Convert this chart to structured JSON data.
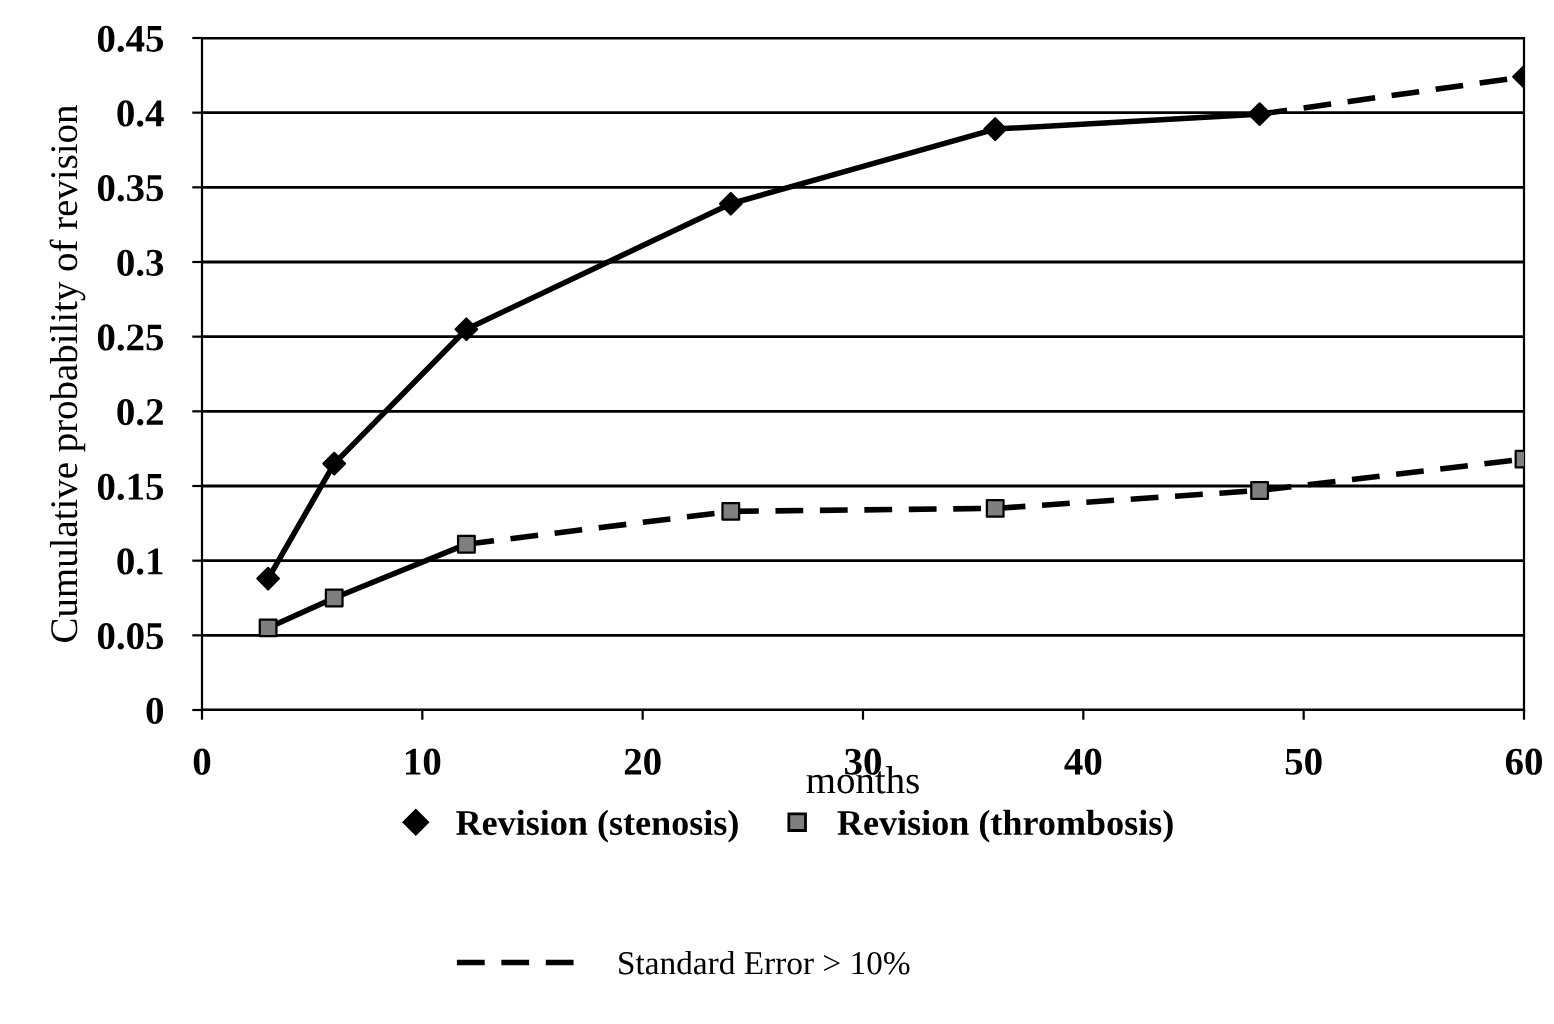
{
  "chart_data": {
    "type": "line",
    "xlabel": "months",
    "ylabel": "Cumulative probability of revision",
    "x": [
      3,
      6,
      12,
      24,
      36,
      48,
      60
    ],
    "series": [
      {
        "name": "Revision (stenosis)",
        "type": "scatter",
        "marker": "diamond",
        "color": "#000000",
        "values": [
          0.088,
          0.165,
          0.255,
          0.339,
          0.389,
          0.399,
          0.424
        ]
      },
      {
        "name": "Revision (thrombosis)",
        "type": "scatter",
        "marker": "square",
        "color": "#7f7f7f",
        "values": [
          0.055,
          0.075,
          0.111,
          0.133,
          0.135,
          0.147,
          0.168
        ]
      },
      {
        "line_style": "solid",
        "color": "#000000",
        "values": [
          0.088,
          0.165,
          0.255,
          0.339,
          0.389,
          0.399,
          null
        ]
      },
      {
        "name": "Standard Error > 10%",
        "line_style": "dashed",
        "color": "#000000",
        "values": [
          null,
          null,
          null,
          null,
          null,
          0.399,
          0.424
        ]
      },
      {
        "line_style": "solid",
        "color": "#000000",
        "values": [
          0.055,
          0.075,
          0.111,
          null,
          null,
          null,
          null
        ]
      },
      {
        "line_style": "dashed",
        "color": "#000000",
        "values": [
          null,
          null,
          0.111,
          0.133,
          0.135,
          0.147,
          0.168
        ]
      }
    ],
    "xlim": [
      0,
      60
    ],
    "xticks": [
      0,
      10,
      20,
      30,
      40,
      50,
      60
    ],
    "ylim": [
      0,
      0.45
    ],
    "yticks": [
      0,
      0.05,
      0.1,
      0.15,
      0.2,
      0.25,
      0.3,
      0.35,
      0.4,
      0.45
    ],
    "grid": "y",
    "legend": "bottom"
  }
}
